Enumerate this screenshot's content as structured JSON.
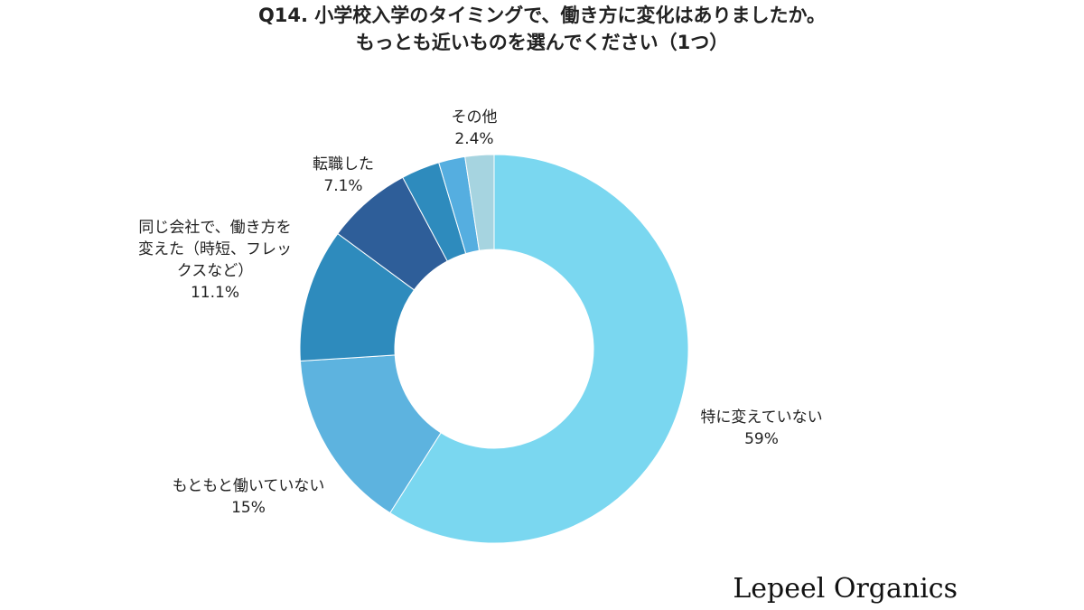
{
  "header": {
    "title_line1": "Q14. 小学校入学のタイミングで、働き方に変化はありましたか。",
    "title_line2": "もっとも近いものを選んでください（1つ）"
  },
  "brand": {
    "name": "Lepeel Organics"
  },
  "chart_data": {
    "type": "pie",
    "donut": true,
    "title": "Q14. 小学校入学のタイミングで、働き方に変化はありましたか。 もっとも近いものを選んでください（1つ）",
    "unit": "%",
    "slices": [
      {
        "label": "特に変えていない",
        "value": 59,
        "value_label": "59%",
        "color": "#7ad7f0"
      },
      {
        "label": "もともと働いていない",
        "value": 15,
        "value_label": "15%",
        "color": "#5db3df"
      },
      {
        "label": "同じ会社で、働き方を変えた（時短、フレックスなど）",
        "value": 11.1,
        "value_label": "11.1%",
        "color": "#2e8bbd"
      },
      {
        "label": "転職した",
        "value": 7.1,
        "value_label": "7.1%",
        "color": "#2e5e99"
      },
      {
        "label": "",
        "value": 3.2,
        "value_label": "",
        "color": "#2e8bbd"
      },
      {
        "label": "",
        "value": 2.2,
        "value_label": "",
        "color": "#55aee0"
      },
      {
        "label": "その他",
        "value": 2.4,
        "value_label": "2.4%",
        "color": "#a6d4e0"
      }
    ]
  },
  "labels": {
    "no_change": {
      "line1": "特に変えていない",
      "value": "59%"
    },
    "not_working": {
      "line1": "もともと働いていない",
      "value": "15%"
    },
    "changed_style": {
      "line1": "同じ会社で、働き方を",
      "line2": "変えた（時短、フレッ",
      "line3": "クスなど）",
      "value": "11.1%"
    },
    "job_change": {
      "line1": "転職した",
      "value": "7.1%"
    },
    "other": {
      "line1": "その他",
      "value": "2.4%"
    }
  }
}
